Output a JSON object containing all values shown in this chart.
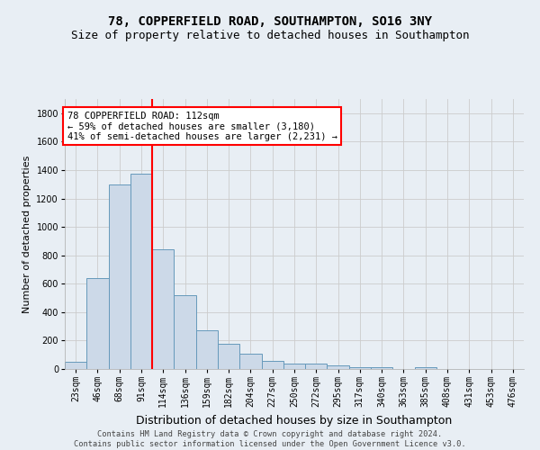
{
  "title": "78, COPPERFIELD ROAD, SOUTHAMPTON, SO16 3NY",
  "subtitle": "Size of property relative to detached houses in Southampton",
  "xlabel": "Distribution of detached houses by size in Southampton",
  "ylabel": "Number of detached properties",
  "footer_line1": "Contains HM Land Registry data © Crown copyright and database right 2024.",
  "footer_line2": "Contains public sector information licensed under the Open Government Licence v3.0.",
  "categories": [
    "23sqm",
    "46sqm",
    "68sqm",
    "91sqm",
    "114sqm",
    "136sqm",
    "159sqm",
    "182sqm",
    "204sqm",
    "227sqm",
    "250sqm",
    "272sqm",
    "295sqm",
    "317sqm",
    "340sqm",
    "363sqm",
    "385sqm",
    "408sqm",
    "431sqm",
    "453sqm",
    "476sqm"
  ],
  "values": [
    50,
    640,
    1300,
    1375,
    840,
    520,
    275,
    175,
    105,
    55,
    40,
    35,
    25,
    15,
    15,
    0,
    10,
    0,
    0,
    0,
    0
  ],
  "bar_color": "#ccd9e8",
  "bar_edge_color": "#6699bb",
  "vline_color": "red",
  "vline_x_index": 4,
  "annotation_text": "78 COPPERFIELD ROAD: 112sqm\n← 59% of detached houses are smaller (3,180)\n41% of semi-detached houses are larger (2,231) →",
  "annotation_box_color": "white",
  "annotation_box_edge_color": "red",
  "ylim": [
    0,
    1900
  ],
  "yticks": [
    0,
    200,
    400,
    600,
    800,
    1000,
    1200,
    1400,
    1600,
    1800
  ],
  "grid_color": "#cccccc",
  "bg_color": "#e8eef4",
  "title_fontsize": 10,
  "subtitle_fontsize": 9,
  "ylabel_fontsize": 8,
  "xlabel_fontsize": 9,
  "tick_fontsize": 7,
  "annotation_fontsize": 7.5
}
